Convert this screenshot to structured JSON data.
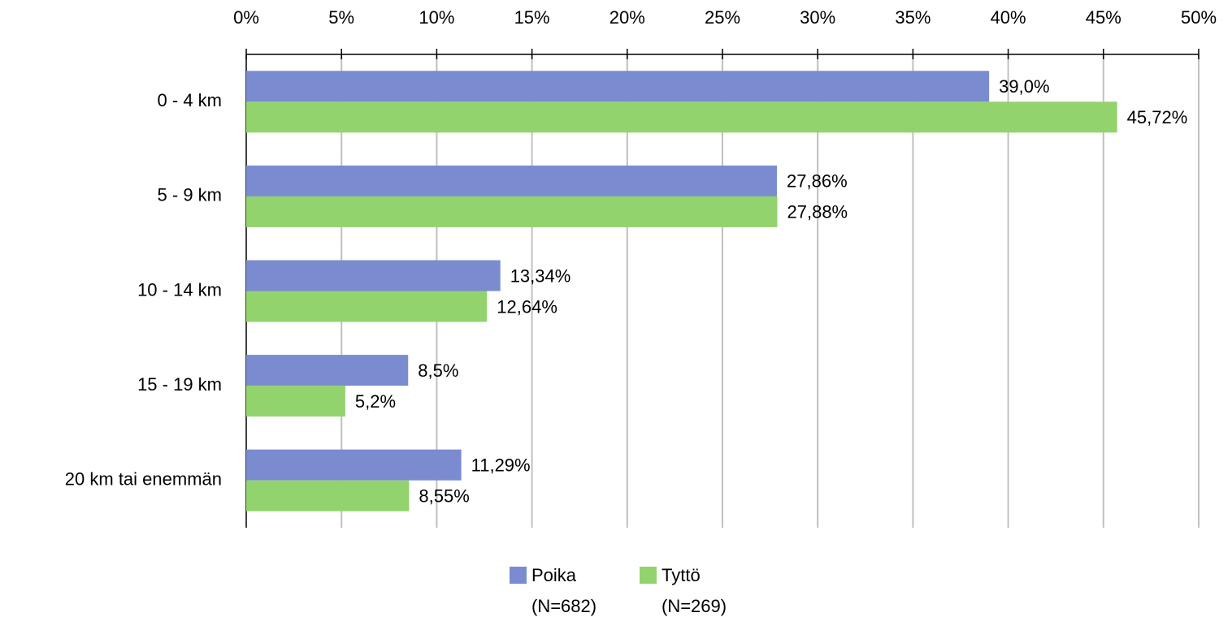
{
  "chart_data": {
    "type": "barh",
    "categories": [
      "0 - 4 km",
      "5 - 9 km",
      "10 - 14 km",
      "15 - 19 km",
      "20 km tai enemmän"
    ],
    "series": [
      {
        "name": "Poika\n(N=682)",
        "color": "#7b8bcf",
        "values": [
          39.0,
          27.86,
          13.34,
          8.5,
          11.29
        ],
        "value_labels": [
          "39,0%",
          "27,86%",
          "13,34%",
          "8,5%",
          "11,29%"
        ]
      },
      {
        "name": "Tyttö\n(N=269)",
        "color": "#92d36e",
        "values": [
          45.72,
          27.88,
          12.64,
          5.2,
          8.55
        ],
        "value_labels": [
          "45,72%",
          "27,88%",
          "12,64%",
          "5,2%",
          "8,55%"
        ]
      }
    ],
    "xlim": [
      0,
      50
    ],
    "xticks": [
      {
        "value": 0,
        "label": "0%"
      },
      {
        "value": 5,
        "label": "5%"
      },
      {
        "value": 10,
        "label": "10%"
      },
      {
        "value": 15,
        "label": "15%"
      },
      {
        "value": 20,
        "label": "20%"
      },
      {
        "value": 25,
        "label": "25%"
      },
      {
        "value": 30,
        "label": "30%"
      },
      {
        "value": 35,
        "label": "35%"
      },
      {
        "value": 40,
        "label": "40%"
      },
      {
        "value": 45,
        "label": "45%"
      },
      {
        "value": 50,
        "label": "50%"
      }
    ],
    "grid": true,
    "legend": "bottom"
  }
}
